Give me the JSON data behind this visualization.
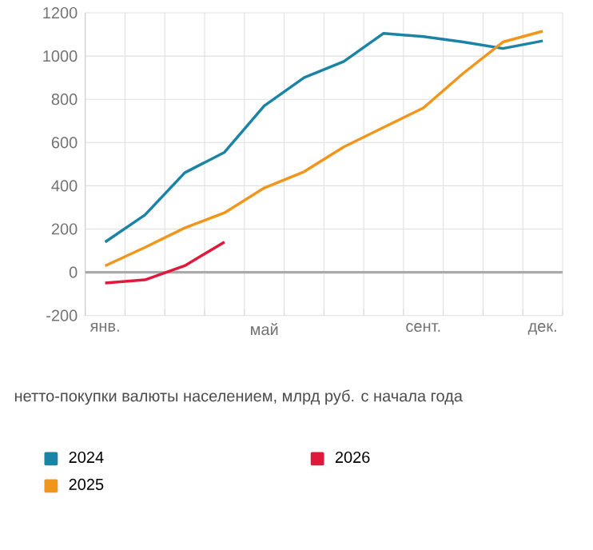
{
  "chart_data": {
    "type": "line",
    "categories": [
      "янв.",
      null,
      null,
      null,
      "май",
      null,
      null,
      null,
      "сент.",
      null,
      null,
      "дек."
    ],
    "series": [
      {
        "name": "2024",
        "color": "#1b84a6",
        "values": [
          140,
          265,
          460,
          555,
          770,
          900,
          975,
          1105,
          1090,
          1065,
          1035,
          1070
        ]
      },
      {
        "name": "2025",
        "color": "#f0961c",
        "values": [
          30,
          115,
          205,
          275,
          390,
          465,
          580,
          670,
          760,
          920,
          1065,
          1115
        ]
      },
      {
        "name": "2026",
        "color": "#e0193c",
        "values": [
          -50,
          -35,
          30,
          140,
          null,
          null,
          null,
          null,
          null,
          null,
          null,
          null
        ]
      }
    ],
    "ylim": [
      -200,
      1200
    ],
    "yticks": [
      -200,
      0,
      200,
      400,
      600,
      800,
      1000,
      1200
    ],
    "ref_lines": [
      {
        "axis": "y",
        "value": 0,
        "color": "#aaaaaa"
      }
    ],
    "grid": true,
    "legend": "bottom",
    "marker": "none",
    "line_style": "solid",
    "annotations": [
      "нетто-покупки валюты населением, млрд руб. с начала года"
    ]
  }
}
